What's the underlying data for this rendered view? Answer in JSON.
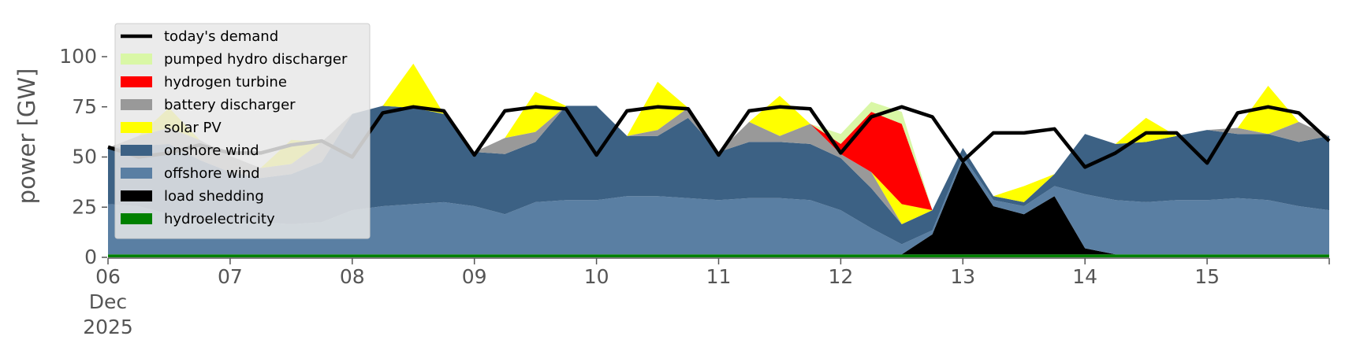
{
  "chart_data": {
    "type": "area",
    "ylabel": "power [GW]",
    "ylim": [
      0,
      120
    ],
    "xlim": [
      "2025-12-06T00:00",
      "2025-12-16T00:00"
    ],
    "y_ticks": [
      0,
      25,
      50,
      75,
      100
    ],
    "y_tick_labels": [
      "0",
      "25",
      "50",
      "75",
      "100"
    ],
    "x_tick_labels": [
      {
        "date": "2025-12-06",
        "lines": [
          "06",
          "Dec",
          "2025"
        ]
      },
      {
        "date": "2025-12-07",
        "lines": [
          "07"
        ]
      },
      {
        "date": "2025-12-08",
        "lines": [
          "08"
        ]
      },
      {
        "date": "2025-12-09",
        "lines": [
          "09"
        ]
      },
      {
        "date": "2025-12-10",
        "lines": [
          "10"
        ]
      },
      {
        "date": "2025-12-11",
        "lines": [
          "11"
        ]
      },
      {
        "date": "2025-12-12",
        "lines": [
          "12"
        ]
      },
      {
        "date": "2025-12-13",
        "lines": [
          "13"
        ]
      },
      {
        "date": "2025-12-14",
        "lines": [
          "14"
        ]
      },
      {
        "date": "2025-12-15",
        "lines": [
          "15"
        ]
      }
    ],
    "grid": false,
    "legend_placement": "top-left",
    "x": [
      "2025-12-06T00:00",
      "2025-12-06T06:00",
      "2025-12-06T12:00",
      "2025-12-06T18:00",
      "2025-12-07T00:00",
      "2025-12-07T06:00",
      "2025-12-07T12:00",
      "2025-12-07T18:00",
      "2025-12-08T00:00",
      "2025-12-08T06:00",
      "2025-12-08T12:00",
      "2025-12-08T18:00",
      "2025-12-09T00:00",
      "2025-12-09T06:00",
      "2025-12-09T12:00",
      "2025-12-09T18:00",
      "2025-12-10T00:00",
      "2025-12-10T06:00",
      "2025-12-10T12:00",
      "2025-12-10T18:00",
      "2025-12-11T00:00",
      "2025-12-11T06:00",
      "2025-12-11T12:00",
      "2025-12-11T18:00",
      "2025-12-12T00:00",
      "2025-12-12T06:00",
      "2025-12-12T12:00",
      "2025-12-12T18:00",
      "2025-12-13T00:00",
      "2025-12-13T06:00",
      "2025-12-13T12:00",
      "2025-12-13T18:00",
      "2025-12-14T00:00",
      "2025-12-14T06:00",
      "2025-12-14T12:00",
      "2025-12-14T18:00",
      "2025-12-15T00:00",
      "2025-12-15T06:00",
      "2025-12-15T12:00",
      "2025-12-15T18:00",
      "2025-12-16T00:00"
    ],
    "series": [
      {
        "name": "hydroelectricity",
        "color": "#008000",
        "values": [
          1.5,
          1.5,
          1.5,
          1.5,
          1.5,
          1.5,
          1.5,
          1.5,
          1.5,
          1.5,
          1.5,
          1.5,
          1.5,
          1.5,
          1.5,
          1.5,
          1.5,
          1.5,
          1.5,
          1.5,
          1.5,
          1.5,
          1.5,
          1.5,
          1.5,
          1.5,
          1.5,
          1.5,
          1.5,
          1.5,
          1.5,
          1.5,
          1.5,
          1.5,
          1.5,
          1.5,
          1.5,
          1.5,
          1.5,
          1.5,
          1.5
        ]
      },
      {
        "name": "load shedding",
        "color": "#000000",
        "values": [
          0,
          0,
          0,
          0,
          0,
          0,
          0,
          0,
          0,
          0,
          0,
          0,
          0,
          0,
          0,
          0,
          0,
          0,
          0,
          0,
          0,
          0,
          0,
          0,
          0,
          0,
          0,
          10,
          47,
          24,
          20,
          29,
          3,
          0,
          0,
          0,
          0,
          0,
          0,
          0,
          0
        ]
      },
      {
        "name": "offshore wind",
        "color": "#5a7fa3",
        "values": [
          25,
          24,
          20,
          17,
          16,
          16,
          15,
          16,
          22,
          24,
          25,
          26,
          24,
          20,
          26,
          27,
          27,
          29,
          29,
          28,
          27,
          28,
          28,
          27,
          22,
          13,
          5,
          2,
          2,
          3,
          4,
          5,
          27,
          27,
          26,
          27,
          27,
          28,
          27,
          24,
          22
        ]
      },
      {
        "name": "onshore wind",
        "color": "#3c6184",
        "values": [
          28,
          30,
          35,
          30,
          25,
          22,
          25,
          30,
          48,
          50,
          48,
          44,
          27,
          30,
          30,
          47,
          47,
          30,
          30,
          40,
          24,
          28,
          28,
          28,
          26,
          20,
          10,
          10,
          4,
          2,
          2,
          6,
          30,
          28,
          30,
          32,
          35,
          32,
          33,
          32,
          37
        ]
      },
      {
        "name": "battery discharger",
        "color": "#999999",
        "values": [
          0,
          5,
          8,
          10,
          8,
          5,
          5,
          10,
          0,
          0,
          0,
          0,
          0,
          8,
          5,
          0,
          0,
          0,
          3,
          5,
          0,
          10,
          3,
          10,
          2,
          8,
          0,
          0,
          0,
          0,
          0,
          0,
          0,
          0,
          0,
          0,
          0,
          3,
          0,
          10,
          0
        ]
      },
      {
        "name": "solar PV",
        "color": "#ffff00",
        "values": [
          0,
          0,
          10,
          0,
          0,
          0,
          12,
          0,
          0,
          0,
          22,
          0,
          0,
          0,
          20,
          0,
          0,
          0,
          24,
          0,
          0,
          0,
          20,
          0,
          0,
          0,
          10,
          0,
          0,
          0,
          8,
          0,
          0,
          0,
          12,
          0,
          0,
          0,
          24,
          0,
          0
        ]
      },
      {
        "name": "hydrogen turbine",
        "color": "#ff0000",
        "values": [
          0,
          0,
          0,
          0,
          0,
          0,
          0,
          0,
          0,
          0,
          0,
          0,
          0,
          0,
          0,
          0,
          0,
          0,
          0,
          0,
          0,
          0,
          0,
          0,
          5,
          30,
          40,
          0,
          0,
          0,
          0,
          0,
          0,
          0,
          0,
          0,
          0,
          0,
          0,
          0,
          0
        ]
      },
      {
        "name": "pumped hydro discharger",
        "color": "#d9f7a6",
        "values": [
          0,
          0,
          0,
          0,
          0,
          0,
          0,
          0,
          0,
          0,
          0,
          0,
          0,
          0,
          0,
          0,
          0,
          0,
          0,
          0,
          0,
          0,
          0,
          0,
          5,
          5,
          6,
          0,
          0,
          0,
          0,
          0,
          0,
          0,
          0,
          0,
          0,
          0,
          0,
          0,
          0
        ]
      }
    ],
    "demand": {
      "name": "today's demand",
      "color": "#000000",
      "values": [
        55,
        50,
        52,
        56,
        52,
        52,
        56,
        58,
        50,
        72,
        75,
        73,
        51,
        73,
        75,
        74,
        51,
        73,
        75,
        74,
        51,
        73,
        75,
        74,
        52,
        70,
        75,
        70,
        48,
        62,
        62,
        64,
        45,
        52,
        62,
        62,
        47,
        72,
        75,
        72,
        58
      ]
    },
    "legend": [
      {
        "label": "today's demand",
        "kind": "line",
        "color": "#000000"
      },
      {
        "label": "pumped hydro discharger",
        "kind": "patch",
        "color": "#d9f7a6"
      },
      {
        "label": "hydrogen turbine",
        "kind": "patch",
        "color": "#ff0000"
      },
      {
        "label": "battery discharger",
        "kind": "patch",
        "color": "#999999"
      },
      {
        "label": "solar PV",
        "kind": "patch",
        "color": "#ffff00"
      },
      {
        "label": "onshore wind",
        "kind": "patch",
        "color": "#3c6184"
      },
      {
        "label": "offshore wind",
        "kind": "patch",
        "color": "#5a7fa3"
      },
      {
        "label": "load shedding",
        "kind": "patch",
        "color": "#000000"
      },
      {
        "label": "hydroelectricity",
        "kind": "patch",
        "color": "#008000"
      }
    ]
  }
}
